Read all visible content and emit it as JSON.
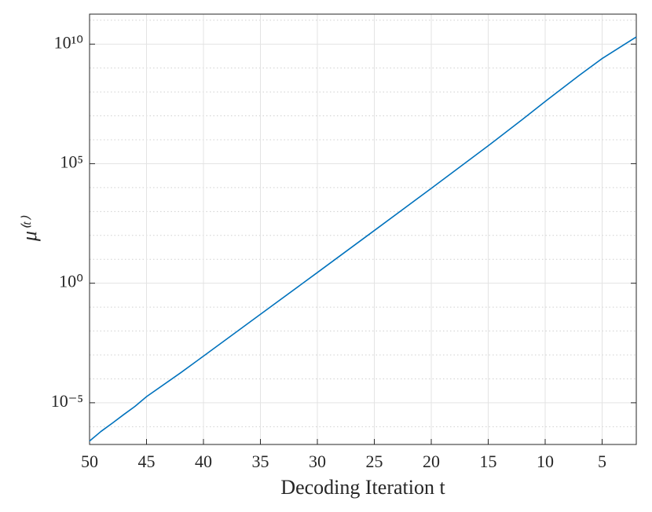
{
  "chart_data": {
    "type": "line",
    "xlabel": "Decoding Iteration t",
    "ylabel": "μ⁽ᵗ⁾",
    "x": [
      50,
      49,
      48,
      47,
      46,
      45,
      42,
      40,
      35,
      30,
      25,
      20,
      15,
      12,
      10,
      7,
      5,
      3,
      2
    ],
    "series": [
      {
        "name": "μ",
        "color": "#0072bd",
        "values": [
          2.5e-07,
          6.3e-07,
          1.4e-06,
          3.2e-06,
          7.1e-06,
          1.8e-05,
          0.00018,
          0.00089,
          0.05,
          2.8,
          160,
          9300,
          560000.0,
          7100000.0,
          40000000.0,
          500000000.0,
          2500000000.0,
          10000000000.0,
          20000000000.0
        ]
      }
    ],
    "xlim": [
      50,
      2
    ],
    "xticks": [
      50,
      45,
      40,
      35,
      30,
      25,
      20,
      15,
      10,
      5
    ],
    "ylim": [
      1.8e-07,
      180000000000.0
    ],
    "yscale": "log",
    "yticks": [
      {
        "value": 1e-05,
        "label": "10⁻⁵"
      },
      {
        "value": 1,
        "label": "10⁰"
      },
      {
        "value": 100000.0,
        "label": "10⁵"
      },
      {
        "value": 10000000000.0,
        "label": "10¹⁰"
      }
    ],
    "yminorticks": [
      1e-06,
      0.0001,
      0.001,
      0.01,
      0.1,
      10,
      100,
      1000,
      10000.0,
      1000000.0,
      10000000.0,
      100000000.0,
      1000000000.0,
      100000000000.0
    ],
    "grid": true
  }
}
